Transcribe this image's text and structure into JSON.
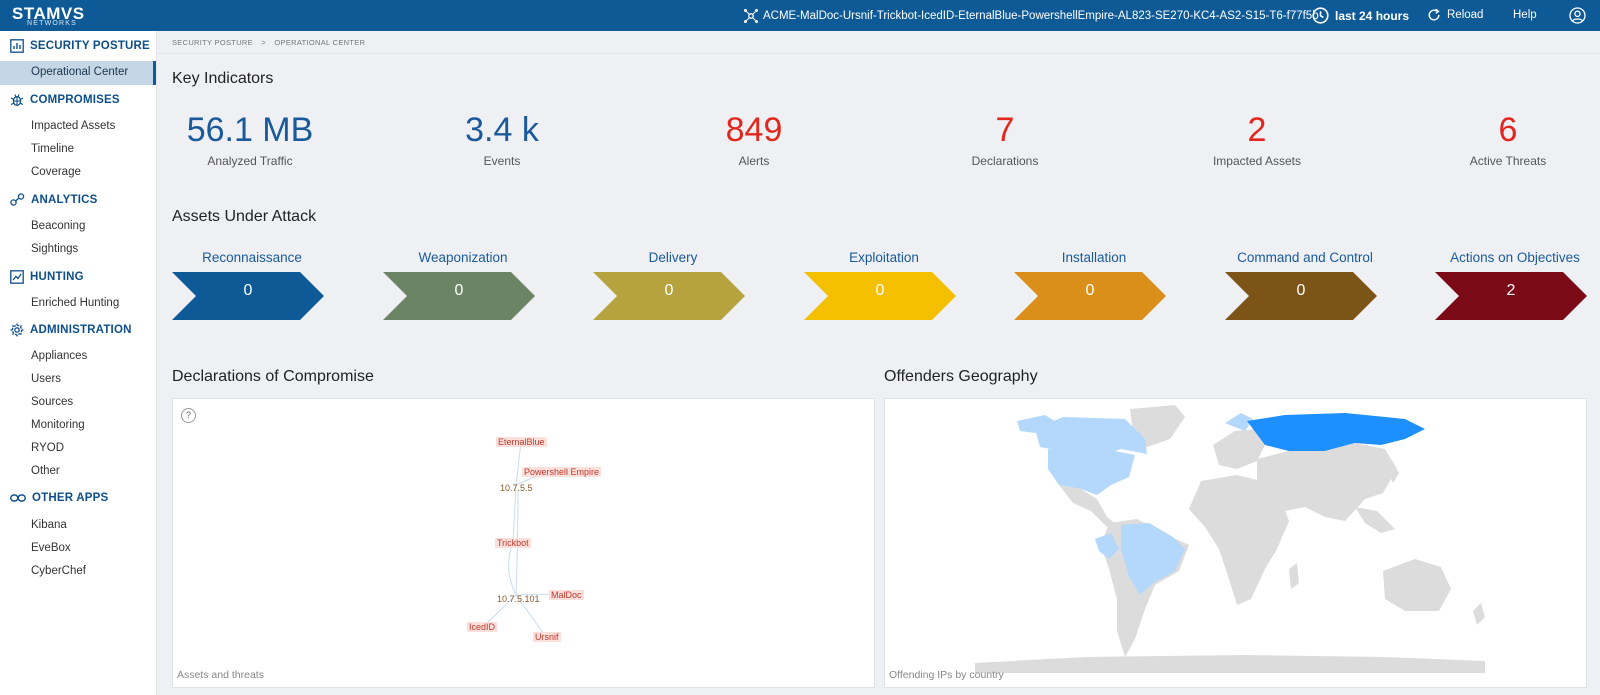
{
  "topbar": {
    "logo_text": "STAMVS",
    "logo_sub": "NETWORKS",
    "hunt_filter": "ACME-MalDoc-Ursnif-Trickbot-IcedID-EternalBlue-PowershellEmpire-AL823-SE270-KC4-AS2-S15-T6-f77f5b",
    "period": "last 24 hours",
    "reload": "Reload",
    "help": "Help"
  },
  "sidebar": {
    "sections": [
      {
        "title": "SECURITY POSTURE",
        "icon": "chart-icon",
        "items": [
          "Operational Center"
        ]
      },
      {
        "title": "COMPROMISES",
        "icon": "bug-icon",
        "items": [
          "Impacted Assets",
          "Timeline",
          "Coverage"
        ]
      },
      {
        "title": "ANALYTICS",
        "icon": "nodes-icon",
        "items": [
          "Beaconing",
          "Sightings"
        ]
      },
      {
        "title": "HUNTING",
        "icon": "hunting-chart-icon",
        "items": [
          "Enriched Hunting"
        ]
      },
      {
        "title": "ADMINISTRATION",
        "icon": "gear-icon",
        "items": [
          "Appliances",
          "Users",
          "Sources",
          "Monitoring",
          "RYOD",
          "Other"
        ]
      },
      {
        "title": "OTHER APPS",
        "icon": "link-icon",
        "items": [
          "Kibana",
          "EveBox",
          "CyberChef"
        ]
      }
    ],
    "active_item": "Operational Center"
  },
  "breadcrumb": {
    "root": "SECURITY POSTURE",
    "sep": ">",
    "current": "OPERATIONAL CENTER"
  },
  "key_indicators": {
    "title": "Key Indicators",
    "items": [
      {
        "value": "56.1 MB",
        "label": "Analyzed Traffic",
        "color": "#1a5a9a"
      },
      {
        "value": "3.4 k",
        "label": "Events",
        "color": "#1a5a9a"
      },
      {
        "value": "849",
        "label": "Alerts",
        "color": "#e3261c"
      },
      {
        "value": "7",
        "label": "Declarations",
        "color": "#e3261c"
      },
      {
        "value": "2",
        "label": "Impacted Assets",
        "color": "#e3261c"
      },
      {
        "value": "6",
        "label": "Active Threats",
        "color": "#e3261c"
      }
    ]
  },
  "assets_under_attack": {
    "title": "Assets Under Attack",
    "phases": [
      {
        "label": "Reconnaissance",
        "value": "0",
        "color": "#0e5a97"
      },
      {
        "label": "Weaponization",
        "value": "0",
        "color": "#6b8466"
      },
      {
        "label": "Delivery",
        "value": "0",
        "color": "#b6a33f"
      },
      {
        "label": "Exploitation",
        "value": "0",
        "color": "#f5c000"
      },
      {
        "label": "Installation",
        "value": "0",
        "color": "#d98f19"
      },
      {
        "label": "Command and Control",
        "value": "0",
        "color": "#7d5418"
      },
      {
        "label": "Actions on Objectives",
        "value": "2",
        "color": "#7a0a16"
      }
    ]
  },
  "declarations": {
    "title": "Declarations of Compromise",
    "help": "?",
    "caption": "Assets and threats",
    "nodes": {
      "eternalblue": "EternalBlue",
      "powershell": "Powershell Empire",
      "ip1": "10.7.5.5",
      "trickbot": "Trickbot",
      "ip2": "10.7.5.101",
      "maldoc": "MalDoc",
      "icedid": "IcedID",
      "ursnif": "Ursnif"
    }
  },
  "geography": {
    "title": "Offenders Geography",
    "caption": "Offending IPs by country",
    "land_color": "#dcdcdc",
    "light_color": "#b3d8fb",
    "strong_color": "#1e8fff"
  }
}
